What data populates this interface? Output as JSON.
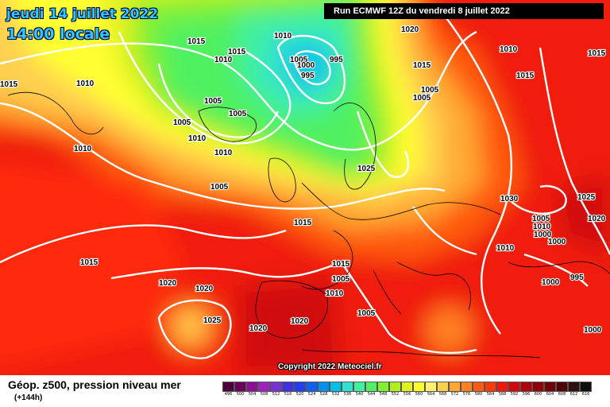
{
  "header": {
    "date": "jeudi 14 juillet 2022",
    "time": "14:00 locale",
    "run": "Run ECMWF 12Z du vendredi 8 juillet 2022"
  },
  "copyright": "Copyright 2022 Meteociel.fr",
  "footer": {
    "title": "Géop. z500, pression niveau mer",
    "subtitle": "(+144h)"
  },
  "legend": {
    "labels": [
      "496",
      "500",
      "504",
      "508",
      "512",
      "516",
      "520",
      "524",
      "528",
      "532",
      "536",
      "540",
      "544",
      "548",
      "552",
      "556",
      "560",
      "564",
      "568",
      "572",
      "576",
      "580",
      "584",
      "588",
      "592",
      "596",
      "600",
      "604",
      "608",
      "612",
      "616"
    ],
    "colors": [
      "#4a003a",
      "#6a005a",
      "#8a1090",
      "#a020c0",
      "#7a30d0",
      "#4030e0",
      "#2040f0",
      "#1060f0",
      "#0090f0",
      "#00c0e8",
      "#30e0d0",
      "#40f0a0",
      "#50f060",
      "#80f030",
      "#b0f020",
      "#e0f020",
      "#ffff30",
      "#fff070",
      "#ffd050",
      "#ffa830",
      "#ff8020",
      "#ff5a10",
      "#ff3a0a",
      "#f01808",
      "#d00808",
      "#b00008",
      "#900008",
      "#700008",
      "#500008",
      "#301010",
      "#101010"
    ]
  },
  "isobars": [
    {
      "value": "1015",
      "label": "1015"
    },
    {
      "value": "1010",
      "label": "1010"
    },
    {
      "value": "1015b",
      "label": "1015"
    },
    {
      "value": "1010b",
      "label": "1010"
    },
    {
      "value": "1005",
      "label": "1005"
    },
    {
      "value": "1000",
      "label": "1000"
    },
    {
      "value": "995",
      "label": "995"
    },
    {
      "value": "995b",
      "label": "995"
    },
    {
      "value": "1020",
      "label": "1020"
    },
    {
      "value": "1010c",
      "label": "1010"
    },
    {
      "value": "10157",
      "label": "1015"
    },
    {
      "value": "1015c",
      "label": "1015"
    },
    {
      "value": "1015d",
      "label": "1015"
    },
    {
      "value": "1015e",
      "label": "1015"
    },
    {
      "value": "1010d",
      "label": "1010"
    },
    {
      "value": "1010e",
      "label": "1010"
    },
    {
      "value": "1005b",
      "label": "1005"
    },
    {
      "value": "1005c",
      "label": "1005"
    },
    {
      "value": "1005d",
      "label": "1005"
    },
    {
      "value": "1005e",
      "label": "1005"
    },
    {
      "value": "1005f",
      "label": "1005"
    },
    {
      "value": "1010f",
      "label": "1010"
    },
    {
      "value": "1010g",
      "label": "1010"
    },
    {
      "value": "1005g",
      "label": "1005"
    },
    {
      "value": "1025",
      "label": "1025"
    },
    {
      "value": "1030",
      "label": "1030"
    },
    {
      "value": "1025b",
      "label": "1025"
    },
    {
      "value": "1020b",
      "label": "1020"
    },
    {
      "value": "1015f",
      "label": "1015"
    },
    {
      "value": "1015g",
      "label": "1015"
    },
    {
      "value": "1020c",
      "label": "1020"
    },
    {
      "value": "1020d",
      "label": "1020"
    },
    {
      "value": "1025c",
      "label": "1025"
    },
    {
      "value": "1020e",
      "label": "1020"
    },
    {
      "value": "1020f",
      "label": "1020"
    },
    {
      "value": "1015h",
      "label": "1015"
    },
    {
      "value": "1005h",
      "label": "1005"
    },
    {
      "value": "1010h",
      "label": "1010"
    },
    {
      "value": "1005i",
      "label": "1005"
    },
    {
      "value": "1010i",
      "label": "1010"
    },
    {
      "value": "1005j",
      "label": "1005"
    },
    {
      "value": "1000b",
      "label": "1000"
    },
    {
      "value": "1000c",
      "label": "1000"
    },
    {
      "value": "1000d",
      "label": "1000"
    },
    {
      "value": "995c",
      "label": "995"
    },
    {
      "value": "1000e",
      "label": "1000"
    },
    {
      "value": "1010j",
      "label": "1010"
    }
  ]
}
